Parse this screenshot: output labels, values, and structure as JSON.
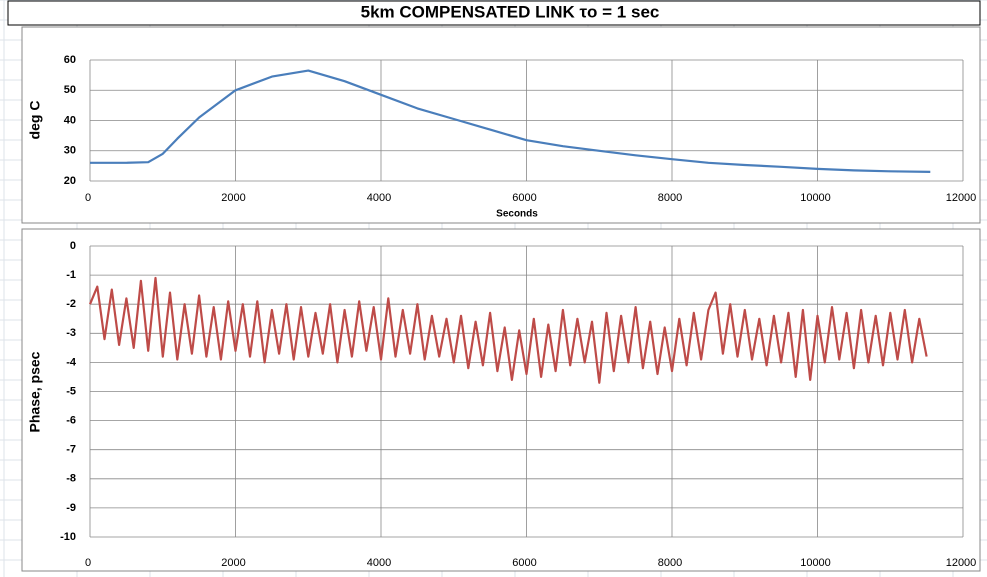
{
  "chart_data": [
    {
      "type": "line",
      "title": "5km COMPENSATED LINK    τo = 1 sec",
      "xlabel": "Seconds",
      "ylabel": "deg C",
      "color": "#4a7ebb",
      "grid": true,
      "x": [
        0,
        500,
        800,
        1000,
        1200,
        1500,
        2000,
        2500,
        3000,
        3500,
        4000,
        4500,
        5000,
        5500,
        6000,
        6500,
        7000,
        7500,
        8000,
        8500,
        9000,
        9500,
        10000,
        10500,
        11000,
        11550
      ],
      "values": [
        26,
        26,
        26.2,
        29,
        34,
        41,
        50,
        54.5,
        56.5,
        53,
        48.5,
        44,
        40.5,
        37,
        33.5,
        31.5,
        30,
        28.5,
        27.2,
        26,
        25.3,
        24.7,
        24,
        23.5,
        23.2,
        23
      ],
      "xlim": [
        0,
        12000
      ],
      "xticks": [
        0,
        2000,
        4000,
        6000,
        8000,
        10000,
        12000
      ],
      "ylim": [
        20,
        60
      ],
      "yticks": [
        20,
        30,
        40,
        50,
        60
      ]
    },
    {
      "type": "line",
      "ylabel": "Phase, psec",
      "color": "#be4b48",
      "grid": true,
      "x": [
        0,
        100,
        200,
        300,
        400,
        500,
        600,
        700,
        800,
        900,
        1000,
        1100,
        1200,
        1300,
        1400,
        1500,
        1600,
        1700,
        1800,
        1900,
        2000,
        2100,
        2200,
        2300,
        2400,
        2500,
        2600,
        2700,
        2800,
        2900,
        3000,
        3100,
        3200,
        3300,
        3400,
        3500,
        3600,
        3700,
        3800,
        3900,
        4000,
        4100,
        4200,
        4300,
        4400,
        4500,
        4600,
        4700,
        4800,
        4900,
        5000,
        5100,
        5200,
        5300,
        5400,
        5500,
        5600,
        5700,
        5800,
        5900,
        6000,
        6100,
        6200,
        6300,
        6400,
        6500,
        6600,
        6700,
        6800,
        6900,
        7000,
        7100,
        7200,
        7300,
        7400,
        7500,
        7600,
        7700,
        7800,
        7900,
        8000,
        8100,
        8200,
        8300,
        8400,
        8500,
        8600,
        8700,
        8800,
        8900,
        9000,
        9100,
        9200,
        9300,
        9400,
        9500,
        9600,
        9700,
        9800,
        9900,
        10000,
        10100,
        10200,
        10300,
        10400,
        10500,
        10600,
        10700,
        10800,
        10900,
        11000,
        11100,
        11200,
        11300,
        11400,
        11500
      ],
      "values": [
        -2.0,
        -1.4,
        -3.2,
        -1.5,
        -3.4,
        -1.8,
        -3.5,
        -1.2,
        -3.6,
        -1.1,
        -3.8,
        -1.6,
        -3.9,
        -2.0,
        -3.7,
        -1.7,
        -3.8,
        -2.1,
        -3.9,
        -1.9,
        -3.6,
        -2.0,
        -3.8,
        -1.9,
        -4.0,
        -2.2,
        -3.7,
        -2.0,
        -3.9,
        -2.1,
        -3.8,
        -2.3,
        -3.7,
        -2.0,
        -4.0,
        -2.2,
        -3.8,
        -1.9,
        -3.6,
        -2.1,
        -3.9,
        -1.8,
        -3.8,
        -2.2,
        -3.7,
        -2.0,
        -3.9,
        -2.4,
        -3.8,
        -2.5,
        -4.0,
        -2.4,
        -4.2,
        -2.6,
        -4.1,
        -2.3,
        -4.3,
        -2.8,
        -4.6,
        -2.9,
        -4.4,
        -2.5,
        -4.5,
        -2.7,
        -4.3,
        -2.2,
        -4.1,
        -2.5,
        -4.0,
        -2.6,
        -4.7,
        -2.3,
        -4.3,
        -2.4,
        -4.0,
        -2.1,
        -4.2,
        -2.6,
        -4.4,
        -2.8,
        -4.3,
        -2.5,
        -4.1,
        -2.3,
        -3.9,
        -2.2,
        -1.6,
        -3.7,
        -2.0,
        -3.8,
        -2.2,
        -3.9,
        -2.5,
        -4.1,
        -2.4,
        -4.0,
        -2.3,
        -4.5,
        -2.2,
        -4.6,
        -2.4,
        -4.0,
        -2.1,
        -3.9,
        -2.3,
        -4.2,
        -2.2,
        -4.0,
        -2.4,
        -4.1,
        -2.3,
        -3.9,
        -2.2,
        -4.0,
        -2.5,
        -3.8
      ],
      "xlim": [
        0,
        12000
      ],
      "xticks": [
        0,
        2000,
        4000,
        6000,
        8000,
        10000,
        12000
      ],
      "ylim": [
        -10,
        0
      ],
      "yticks": [
        -10,
        -9,
        -8,
        -7,
        -6,
        -5,
        -4,
        -3,
        -2,
        -1,
        0
      ]
    }
  ]
}
